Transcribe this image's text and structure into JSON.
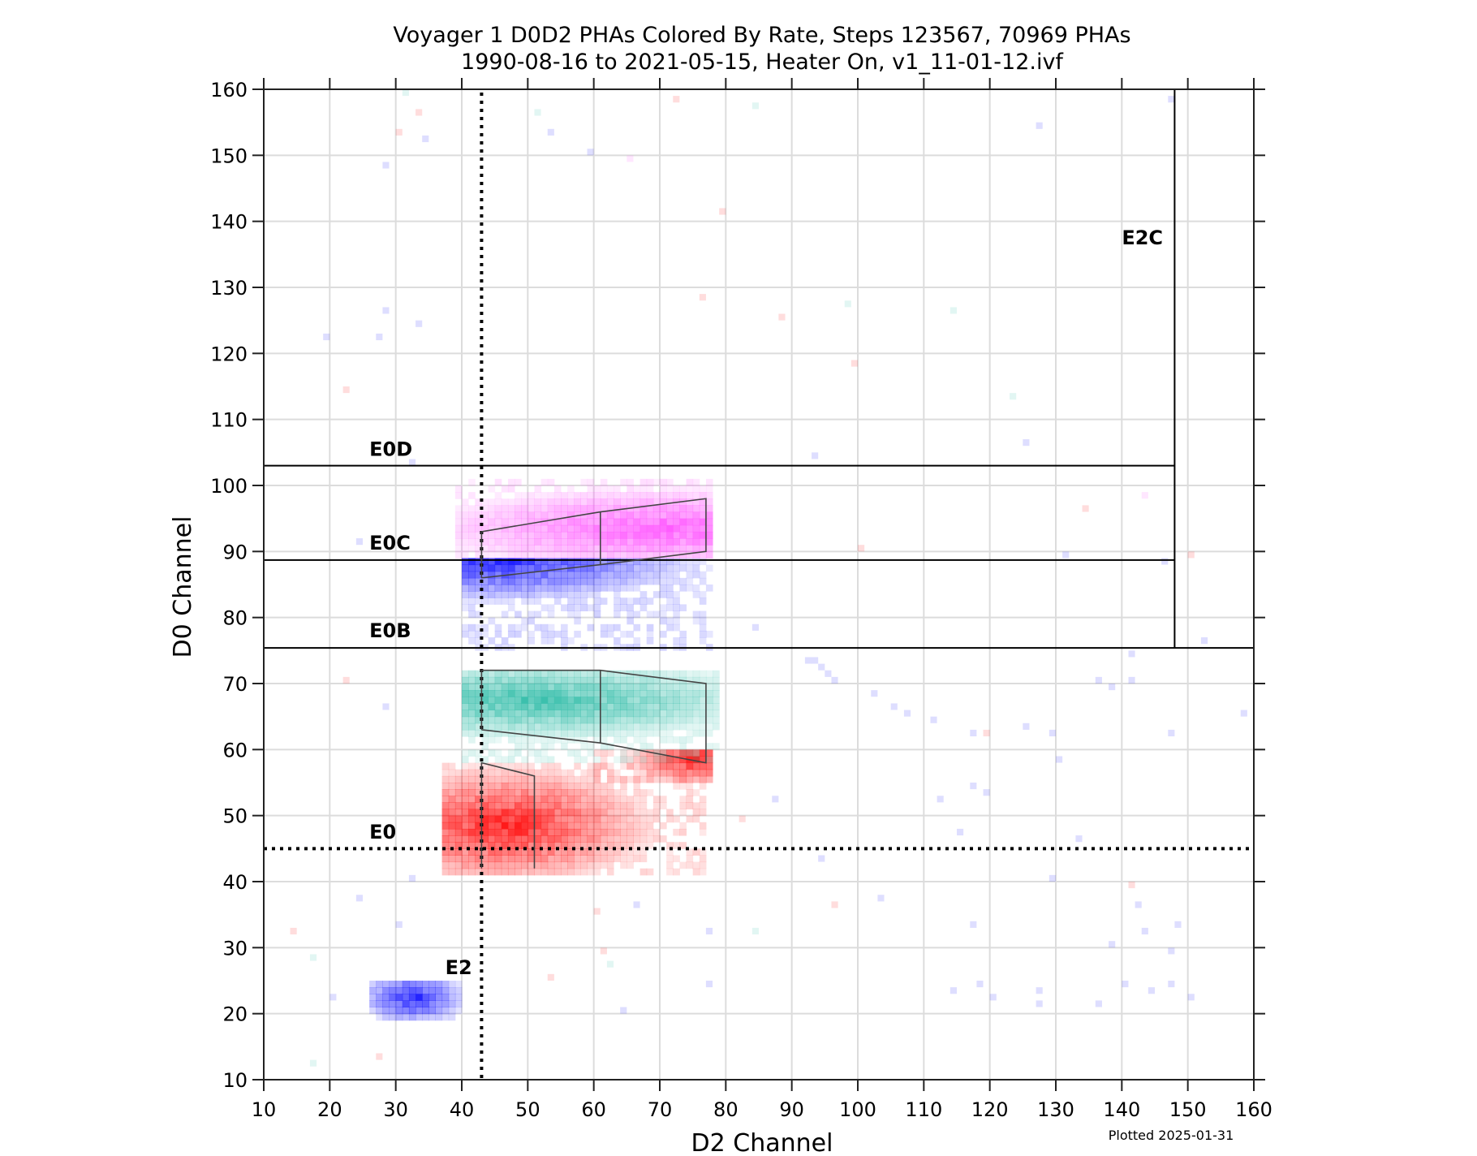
{
  "chart_data": {
    "type": "heatmap",
    "title_line1": "Voyager 1 D0D2 PHAs Colored By Rate, Steps 123567, 70969 PHAs",
    "title_line2": "1990-08-16 to 2021-05-15, Heater On, v1_11-01-12.ivf",
    "xlabel": "D2 Channel",
    "ylabel": "D0 Channel",
    "footer": "Plotted 2025-01-31",
    "xlim": [
      10,
      160
    ],
    "ylim": [
      10,
      160
    ],
    "xticks": [
      "10",
      "20",
      "30",
      "40",
      "50",
      "60",
      "70",
      "80",
      "90",
      "100",
      "110",
      "120",
      "130",
      "140",
      "150",
      "160"
    ],
    "yticks": [
      "10",
      "20",
      "30",
      "40",
      "50",
      "60",
      "70",
      "80",
      "90",
      "100",
      "110",
      "120",
      "130",
      "140",
      "150",
      "160"
    ],
    "grid": true,
    "colors": {
      "red": "#ff1a1a",
      "teal": "#3cc0ad",
      "blue": "#2020ff",
      "magenta": "#ff5cff"
    },
    "thresholds": {
      "E0D": 103,
      "E0C": 88.7,
      "E0B": 75.4,
      "E2C": 148,
      "E0_dotted": 45,
      "E2_dotted": 43
    },
    "annotations": [
      {
        "text": "E0D",
        "x": 26,
        "y": 104.5
      },
      {
        "text": "E0C",
        "x": 26,
        "y": 90.3
      },
      {
        "text": "E0B",
        "x": 26,
        "y": 77
      },
      {
        "text": "E0",
        "x": 26,
        "y": 46.5
      },
      {
        "text": "E2",
        "x": 37.5,
        "y": 26
      },
      {
        "text": "E2C",
        "x": 140,
        "y": 136.5
      }
    ],
    "boxes": [
      {
        "name": "E0-box",
        "points": [
          [
            43,
            42
          ],
          [
            43,
            58
          ],
          [
            51,
            56
          ],
          [
            51,
            42
          ]
        ]
      },
      {
        "name": "E0B-box",
        "points": [
          [
            43,
            63
          ],
          [
            43,
            72
          ],
          [
            61,
            72
          ],
          [
            77,
            70
          ],
          [
            77,
            58
          ],
          [
            61,
            61
          ],
          [
            43,
            63
          ]
        ]
      },
      {
        "name": "E0B-divider",
        "points": [
          [
            61,
            72
          ],
          [
            61,
            61
          ]
        ]
      },
      {
        "name": "E0C-box",
        "points": [
          [
            43,
            86
          ],
          [
            43,
            93
          ],
          [
            61,
            96
          ],
          [
            77,
            98
          ],
          [
            77,
            90
          ],
          [
            61,
            88
          ],
          [
            43,
            86
          ]
        ]
      },
      {
        "name": "E0C-divider",
        "points": [
          [
            61,
            96
          ],
          [
            61,
            88
          ]
        ]
      }
    ],
    "clusters": [
      {
        "color": "red",
        "x": [
          37,
          77
        ],
        "y": [
          41,
          58
        ],
        "peak": [
          46,
          48
        ],
        "spread": [
          22,
          9
        ]
      },
      {
        "color": "red",
        "x": [
          60,
          78
        ],
        "y": [
          55,
          60
        ],
        "peak": [
          75,
          58
        ],
        "spread": [
          10,
          4
        ]
      },
      {
        "color": "teal",
        "x": [
          40,
          79
        ],
        "y": [
          58,
          72
        ],
        "peak": [
          50,
          67
        ],
        "spread": [
          35,
          6
        ]
      },
      {
        "color": "blue",
        "x": [
          40,
          78
        ],
        "y": [
          75,
          89
        ],
        "peak": [
          44,
          88
        ],
        "spread": [
          30,
          6
        ]
      },
      {
        "color": "magenta",
        "x": [
          39,
          78
        ],
        "y": [
          89,
          101
        ],
        "peak": [
          70,
          93
        ],
        "spread": [
          35,
          6
        ]
      },
      {
        "color": "blue",
        "x": [
          26,
          40
        ],
        "y": [
          19,
          25
        ],
        "peak": [
          32,
          22
        ],
        "spread": [
          8,
          4
        ]
      }
    ],
    "scatter": [
      {
        "c": "teal",
        "x": 31,
        "y": 159
      },
      {
        "c": "red",
        "x": 33,
        "y": 156
      },
      {
        "c": "red",
        "x": 30,
        "y": 153
      },
      {
        "c": "blue",
        "x": 34,
        "y": 152
      },
      {
        "c": "teal",
        "x": 51,
        "y": 156
      },
      {
        "c": "blue",
        "x": 53,
        "y": 153
      },
      {
        "c": "blue",
        "x": 59,
        "y": 150
      },
      {
        "c": "magenta",
        "x": 65,
        "y": 149
      },
      {
        "c": "red",
        "x": 72,
        "y": 158
      },
      {
        "c": "teal",
        "x": 84,
        "y": 157
      },
      {
        "c": "blue",
        "x": 127,
        "y": 154
      },
      {
        "c": "blue",
        "x": 147,
        "y": 158
      },
      {
        "c": "blue",
        "x": 28,
        "y": 148
      },
      {
        "c": "red",
        "x": 79,
        "y": 141
      },
      {
        "c": "red",
        "x": 76,
        "y": 128
      },
      {
        "c": "red",
        "x": 88,
        "y": 125
      },
      {
        "c": "teal",
        "x": 98,
        "y": 127
      },
      {
        "c": "teal",
        "x": 114,
        "y": 126
      },
      {
        "c": "blue",
        "x": 28,
        "y": 126
      },
      {
        "c": "blue",
        "x": 33,
        "y": 124
      },
      {
        "c": "blue",
        "x": 19,
        "y": 122
      },
      {
        "c": "blue",
        "x": 27,
        "y": 122
      },
      {
        "c": "red",
        "x": 22,
        "y": 114
      },
      {
        "c": "red",
        "x": 99,
        "y": 118
      },
      {
        "c": "teal",
        "x": 123,
        "y": 113
      },
      {
        "c": "blue",
        "x": 125,
        "y": 106
      },
      {
        "c": "blue",
        "x": 93,
        "y": 104
      },
      {
        "c": "red",
        "x": 134,
        "y": 96
      },
      {
        "c": "red",
        "x": 150,
        "y": 89
      },
      {
        "c": "blue",
        "x": 146,
        "y": 88
      },
      {
        "c": "blue",
        "x": 152,
        "y": 76
      },
      {
        "c": "blue",
        "x": 84,
        "y": 78
      },
      {
        "c": "blue",
        "x": 92,
        "y": 73
      },
      {
        "c": "blue",
        "x": 93,
        "y": 73
      },
      {
        "c": "blue",
        "x": 94,
        "y": 72
      },
      {
        "c": "blue",
        "x": 95,
        "y": 71
      },
      {
        "c": "blue",
        "x": 96,
        "y": 70
      },
      {
        "c": "blue",
        "x": 102,
        "y": 68
      },
      {
        "c": "blue",
        "x": 105,
        "y": 66
      },
      {
        "c": "blue",
        "x": 107,
        "y": 65
      },
      {
        "c": "blue",
        "x": 111,
        "y": 64
      },
      {
        "c": "blue",
        "x": 117,
        "y": 62
      },
      {
        "c": "red",
        "x": 119,
        "y": 62
      },
      {
        "c": "blue",
        "x": 125,
        "y": 63
      },
      {
        "c": "blue",
        "x": 129,
        "y": 62
      },
      {
        "c": "blue",
        "x": 136,
        "y": 70
      },
      {
        "c": "blue",
        "x": 138,
        "y": 69
      },
      {
        "c": "blue",
        "x": 141,
        "y": 70
      },
      {
        "c": "blue",
        "x": 141,
        "y": 74
      },
      {
        "c": "blue",
        "x": 147,
        "y": 62
      },
      {
        "c": "blue",
        "x": 158,
        "y": 65
      },
      {
        "c": "blue",
        "x": 130,
        "y": 58
      },
      {
        "c": "blue",
        "x": 87,
        "y": 52
      },
      {
        "c": "blue",
        "x": 112,
        "y": 52
      },
      {
        "c": "blue",
        "x": 119,
        "y": 53
      },
      {
        "c": "blue",
        "x": 117,
        "y": 54
      },
      {
        "c": "red",
        "x": 82,
        "y": 49
      },
      {
        "c": "blue",
        "x": 115,
        "y": 47
      },
      {
        "c": "blue",
        "x": 133,
        "y": 46
      },
      {
        "c": "blue",
        "x": 94,
        "y": 43
      },
      {
        "c": "blue",
        "x": 129,
        "y": 40
      },
      {
        "c": "red",
        "x": 141,
        "y": 39
      },
      {
        "c": "blue",
        "x": 142,
        "y": 36
      },
      {
        "c": "blue",
        "x": 103,
        "y": 37
      },
      {
        "c": "red",
        "x": 96,
        "y": 36
      },
      {
        "c": "blue",
        "x": 117,
        "y": 33
      },
      {
        "c": "blue",
        "x": 143,
        "y": 32
      },
      {
        "c": "blue",
        "x": 148,
        "y": 33
      },
      {
        "c": "blue",
        "x": 138,
        "y": 30
      },
      {
        "c": "blue",
        "x": 147,
        "y": 29
      },
      {
        "c": "teal",
        "x": 84,
        "y": 32
      },
      {
        "c": "blue",
        "x": 77,
        "y": 32
      },
      {
        "c": "blue",
        "x": 114,
        "y": 23
      },
      {
        "c": "blue",
        "x": 118,
        "y": 24
      },
      {
        "c": "blue",
        "x": 120,
        "y": 22
      },
      {
        "c": "blue",
        "x": 127,
        "y": 23
      },
      {
        "c": "blue",
        "x": 140,
        "y": 24
      },
      {
        "c": "blue",
        "x": 144,
        "y": 23
      },
      {
        "c": "blue",
        "x": 147,
        "y": 24
      },
      {
        "c": "blue",
        "x": 150,
        "y": 22
      },
      {
        "c": "blue",
        "x": 136,
        "y": 21
      },
      {
        "c": "blue",
        "x": 127,
        "y": 21
      },
      {
        "c": "blue",
        "x": 77,
        "y": 24
      },
      {
        "c": "blue",
        "x": 64,
        "y": 20
      },
      {
        "c": "red",
        "x": 60,
        "y": 35
      },
      {
        "c": "red",
        "x": 61,
        "y": 29
      },
      {
        "c": "teal",
        "x": 62,
        "y": 27
      },
      {
        "c": "red",
        "x": 53,
        "y": 25
      },
      {
        "c": "blue",
        "x": 66,
        "y": 36
      },
      {
        "c": "red",
        "x": 27,
        "y": 13
      },
      {
        "c": "teal",
        "x": 17,
        "y": 12
      },
      {
        "c": "blue",
        "x": 24,
        "y": 37
      },
      {
        "c": "blue",
        "x": 30,
        "y": 33
      },
      {
        "c": "blue",
        "x": 32,
        "y": 40
      },
      {
        "c": "teal",
        "x": 17,
        "y": 28
      },
      {
        "c": "red",
        "x": 14,
        "y": 32
      },
      {
        "c": "blue",
        "x": 20,
        "y": 22
      },
      {
        "c": "blue",
        "x": 24,
        "y": 91
      },
      {
        "c": "blue",
        "x": 32,
        "y": 103
      },
      {
        "c": "red",
        "x": 100,
        "y": 90
      },
      {
        "c": "blue",
        "x": 131,
        "y": 89
      },
      {
        "c": "magenta",
        "x": 143,
        "y": 98
      },
      {
        "c": "red",
        "x": 22,
        "y": 70
      },
      {
        "c": "blue",
        "x": 28,
        "y": 66
      }
    ]
  }
}
